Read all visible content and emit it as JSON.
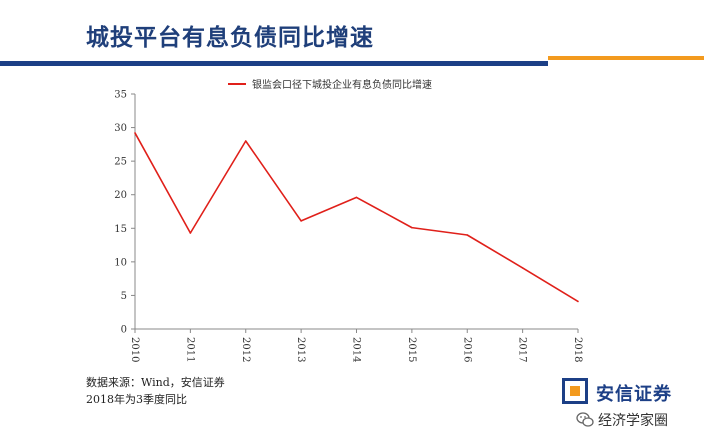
{
  "title": "城投平台有息负债同比增速",
  "chart_data": {
    "type": "line",
    "categories": [
      "2010",
      "2011",
      "2012",
      "2013",
      "2014",
      "2015",
      "2016",
      "2017",
      "2018"
    ],
    "series": [
      {
        "name": "银监会口径下城投企业有息负债同比增速",
        "values": [
          29.2,
          14.3,
          28.0,
          16.1,
          19.6,
          15.1,
          14.0,
          9.1,
          4.1
        ],
        "color": "#e0201a"
      }
    ],
    "ylim": [
      0,
      35
    ],
    "yticks": [
      "0",
      "5",
      "10",
      "15",
      "20",
      "25",
      "30",
      "35"
    ],
    "grid": false,
    "legend": "top-center"
  },
  "footnotes": {
    "source": "数据来源：Wind，安信证券",
    "note": "2018年为3季度同比"
  },
  "brand": {
    "name": "安信证券",
    "logo_color": "#1c3f86",
    "logo_accent": "#f39a1e"
  },
  "watermark": {
    "text": "经济学家圈",
    "icon": "wechat-icon"
  }
}
